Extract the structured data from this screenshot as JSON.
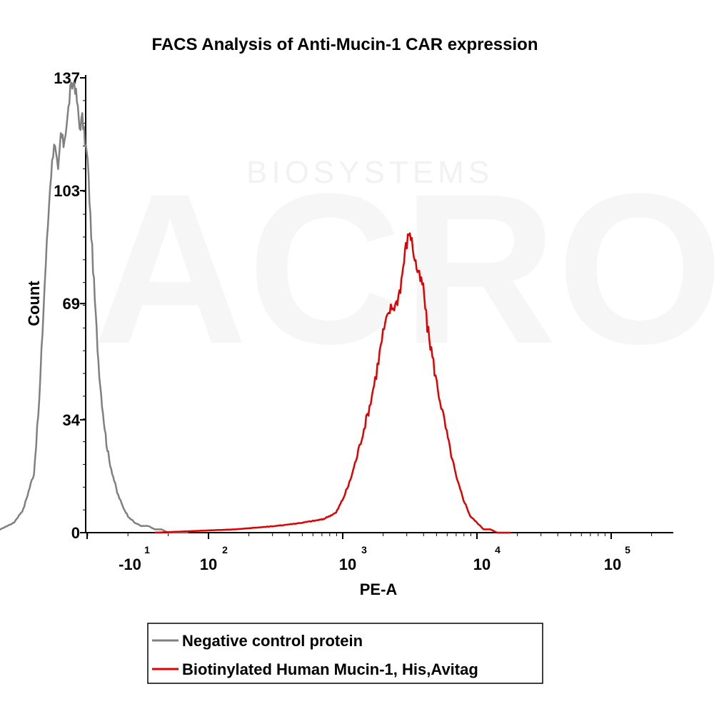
{
  "watermark": {
    "brand": "ACRO",
    "sub": "BIOSYSTEMS"
  },
  "chart_data": {
    "type": "line",
    "title": "FACS Analysis of Anti-Mucin-1 CAR expression",
    "xlabel": "PE-A",
    "ylabel": "Count",
    "xscale": "biexponential",
    "x_ticks": [
      {
        "base": "-10",
        "exp": "1"
      },
      {
        "base": "10",
        "exp": "2"
      },
      {
        "base": "10",
        "exp": "3"
      },
      {
        "base": "10",
        "exp": "4"
      },
      {
        "base": "10",
        "exp": "5"
      }
    ],
    "y_ticks": [
      "0",
      "34",
      "69",
      "103",
      "137"
    ],
    "ylim": [
      0,
      137
    ],
    "grid": false,
    "legend_position": "bottom",
    "series": [
      {
        "name": "Negative control protein",
        "color": "#808080",
        "x_decades": [
          -1.7,
          -1.6,
          -1.55,
          -1.45,
          -1.38,
          -1.3,
          -1.26,
          -1.22,
          -1.18,
          -1.15,
          -1.12,
          -1.1,
          -1.08,
          -1.05,
          -1.03,
          -1.0,
          -0.98,
          -0.96,
          -0.94,
          -0.92,
          -0.9,
          -0.88,
          -0.86,
          -0.84,
          -0.82,
          -0.8,
          -0.78,
          -0.76,
          -0.74,
          -0.71,
          -0.68,
          -0.64,
          -0.6,
          -0.55,
          -0.5,
          -0.45,
          -0.4,
          -0.35,
          -0.3,
          -0.25,
          -0.2,
          -0.15
        ],
        "y": [
          0,
          0,
          1,
          3,
          7,
          18,
          40,
          75,
          105,
          118,
          108,
          120,
          117,
          125,
          133,
          136,
          130,
          122,
          125,
          118,
          112,
          95,
          80,
          65,
          52,
          42,
          34,
          27,
          22,
          17,
          12,
          8,
          5,
          3,
          2,
          2,
          1,
          1,
          0,
          0,
          0,
          0
        ]
      },
      {
        "name": "Biotinylated Human Mucin-1, His,Avitag",
        "color": "#e00000",
        "x_decades": [
          -0.4,
          0.2,
          0.5,
          0.7,
          0.85,
          0.95,
          1.0,
          1.05,
          1.1,
          1.15,
          1.2,
          1.25,
          1.3,
          1.35,
          1.4,
          1.43,
          1.45,
          1.47,
          1.5,
          1.53,
          1.55,
          1.57,
          1.6,
          1.63,
          1.66,
          1.7,
          1.75,
          1.8,
          1.85,
          1.9,
          1.95,
          2.0,
          2.05,
          2.1,
          2.15,
          2.2,
          2.25
        ],
        "y": [
          0,
          1,
          2,
          3,
          4,
          6,
          10,
          15,
          22,
          30,
          38,
          48,
          60,
          67,
          69,
          74,
          80,
          86,
          91,
          84,
          80,
          77,
          74,
          62,
          55,
          45,
          35,
          25,
          16,
          10,
          5,
          3,
          1,
          1,
          0,
          0,
          0
        ]
      }
    ]
  }
}
